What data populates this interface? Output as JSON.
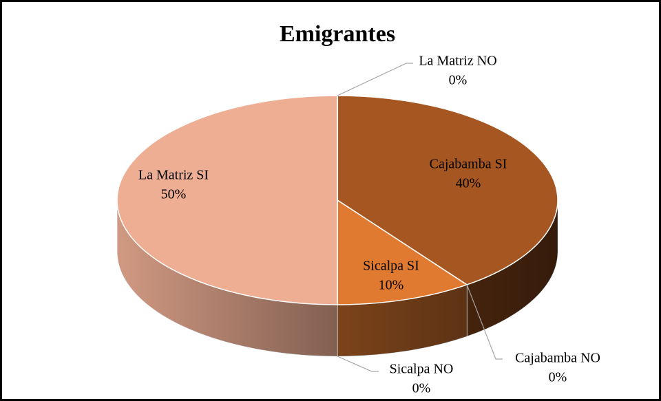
{
  "chart_data": {
    "type": "pie",
    "title": "Emigrantes",
    "categories": [
      "Cajabamba SI",
      "Cajabamba NO",
      "Sicalpa SI",
      "Sicalpa NO",
      "La Matriz SI",
      "La Matriz NO"
    ],
    "values": [
      40,
      0,
      10,
      0,
      50,
      0
    ],
    "value_labels": [
      "40%",
      "0%",
      "10%",
      "0%",
      "50%",
      "0%"
    ],
    "colors": [
      "#a65620",
      "#8c4a1c",
      "#e07a30",
      "#c56a28",
      "#edae94",
      "#d9a08a"
    ]
  }
}
